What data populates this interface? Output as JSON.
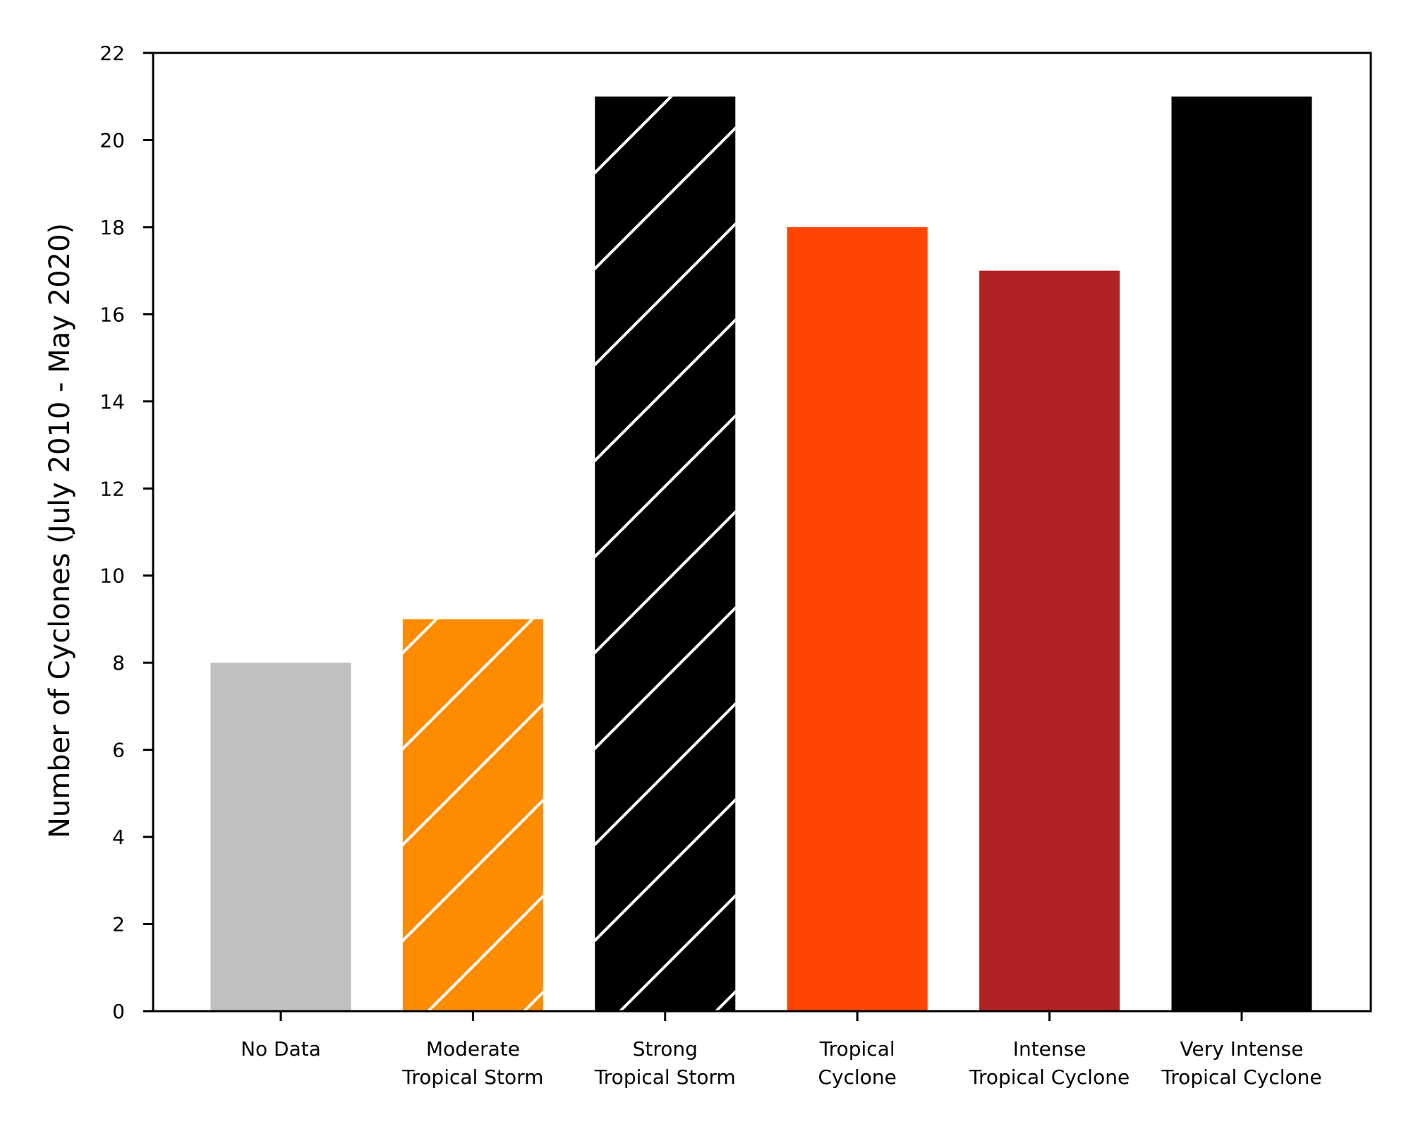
{
  "chart_data": {
    "type": "bar",
    "categories": [
      "No Data",
      "Moderate\nTropical Storm",
      "Strong\nTropical Storm",
      "Tropical\nCyclone",
      "Intense\nTropical Cyclone",
      "Very Intense\nTropical Cyclone"
    ],
    "values": [
      8,
      9,
      21,
      18,
      17,
      21
    ],
    "colors": [
      "#c0c0c0",
      "#ff8c00",
      "#000000",
      "#ff4500",
      "#b22222",
      "#000000"
    ],
    "hatched": [
      false,
      true,
      true,
      false,
      false,
      false
    ],
    "title": "",
    "xlabel": "",
    "ylabel": "Number of Cyclones (July 2010 - May 2020)",
    "ylim": [
      0,
      22
    ],
    "yticks": [
      0,
      2,
      4,
      6,
      8,
      10,
      12,
      14,
      16,
      18,
      20,
      22
    ],
    "grid": false,
    "legend": "none"
  }
}
